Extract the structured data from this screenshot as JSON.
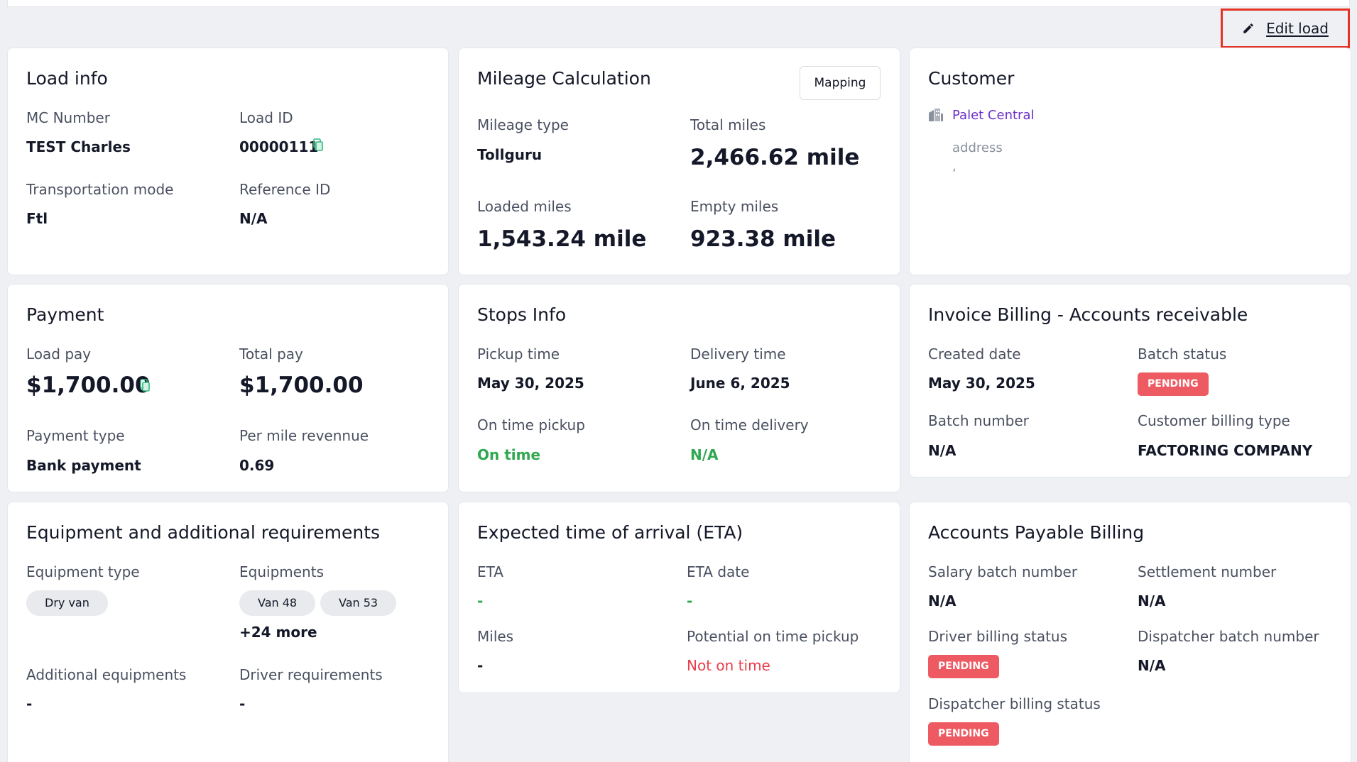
{
  "header": {
    "edit_load_label": "Edit load"
  },
  "load_info": {
    "title": "Load info",
    "mc_number_label": "MC Number",
    "mc_number_value": "TEST Charles",
    "load_id_label": "Load ID",
    "load_id_value": "00000111",
    "transportation_mode_label": "Transportation mode",
    "transportation_mode_value": "Ftl",
    "reference_id_label": "Reference ID",
    "reference_id_value": "N/A"
  },
  "mileage": {
    "title": "Mileage Calculation",
    "mapping_button": "Mapping",
    "mileage_type_label": "Mileage type",
    "mileage_type_value": "Tollguru",
    "total_miles_label": "Total miles",
    "total_miles_value": "2,466.62 mile",
    "loaded_miles_label": "Loaded miles",
    "loaded_miles_value": "1,543.24 mile",
    "empty_miles_label": "Empty miles",
    "empty_miles_value": "923.38 mile"
  },
  "customer": {
    "title": "Customer",
    "name": "Palet Central",
    "address_label": "address",
    "address_value": ","
  },
  "payment": {
    "title": "Payment",
    "load_pay_label": "Load pay",
    "load_pay_value": "$1,700.00",
    "total_pay_label": "Total pay",
    "total_pay_value": "$1,700.00",
    "payment_type_label": "Payment type",
    "payment_type_value": "Bank payment",
    "per_mile_label": "Per mile revennue",
    "per_mile_value": "0.69"
  },
  "stops": {
    "title": "Stops Info",
    "pickup_time_label": "Pickup time",
    "pickup_time_value": "May 30, 2025",
    "delivery_time_label": "Delivery time",
    "delivery_time_value": "June 6, 2025",
    "on_time_pickup_label": "On time pickup",
    "on_time_pickup_value": "On time",
    "on_time_delivery_label": "On time delivery",
    "on_time_delivery_value": "N/A"
  },
  "invoice": {
    "title": "Invoice Billing - Accounts receivable",
    "created_date_label": "Created date",
    "created_date_value": "May 30, 2025",
    "batch_status_label": "Batch status",
    "batch_status_value": "PENDING",
    "batch_number_label": "Batch number",
    "batch_number_value": "N/A",
    "customer_billing_type_label": "Customer billing type",
    "customer_billing_type_value": "FACTORING COMPANY"
  },
  "equipment": {
    "title": "Equipment and additional requirements",
    "equipment_type_label": "Equipment type",
    "equipment_type_value": "Dry van",
    "equipments_label": "Equipments",
    "equipments": [
      "Van 48",
      "Van 53"
    ],
    "more_label": "+24 more",
    "additional_equipments_label": "Additional equipments",
    "additional_equipments_value": "-",
    "driver_requirements_label": "Driver requirements",
    "driver_requirements_value": "-"
  },
  "eta": {
    "title": "Expected time of arrival (ETA)",
    "eta_label": "ETA",
    "eta_value": "-",
    "eta_date_label": "ETA date",
    "eta_date_value": "-",
    "miles_label": "Miles",
    "miles_value": "-",
    "potential_label": "Potential on time pickup",
    "potential_value": "Not on time"
  },
  "payable": {
    "title": "Accounts Payable Billing",
    "salary_batch_label": "Salary batch number",
    "salary_batch_value": "N/A",
    "settlement_label": "Settlement number",
    "settlement_value": "N/A",
    "driver_billing_label": "Driver billing status",
    "driver_billing_value": "PENDING",
    "dispatcher_batch_label": "Dispatcher batch number",
    "dispatcher_batch_value": "N/A",
    "dispatcher_billing_label": "Dispatcher billing status",
    "dispatcher_billing_value": "PENDING"
  },
  "colors": {
    "highlight": "#e63325",
    "pending_badge": "#ee5a61",
    "on_time_green": "#2fa84f",
    "customer_link": "#6b2fc9"
  }
}
